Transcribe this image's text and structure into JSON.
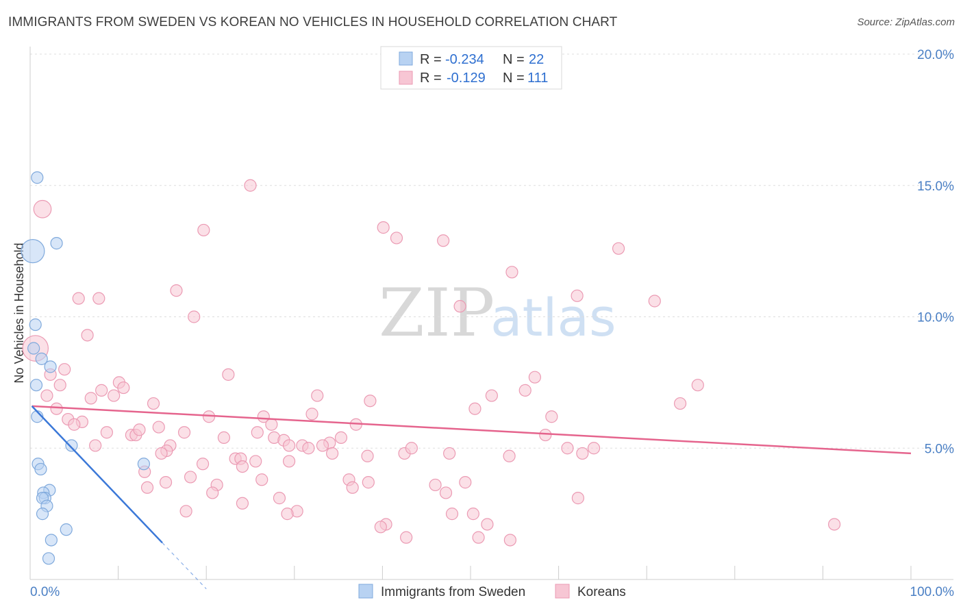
{
  "title": "IMMIGRANTS FROM SWEDEN VS KOREAN NO VEHICLES IN HOUSEHOLD CORRELATION CHART",
  "source": "Source: ZipAtlas.com",
  "watermark": {
    "zip": "ZIP",
    "atlas": "atlas"
  },
  "colors": {
    "blue_fill": "#b8d2f2",
    "blue_stroke": "#7fa9dc",
    "blue_line": "#3b78d8",
    "pink_fill": "#f7c6d4",
    "pink_stroke": "#eb9ab3",
    "pink_line": "#e5648d",
    "tick_text": "#4a7fc4",
    "grid": "#dddddd"
  },
  "legend": {
    "r_label": "R =",
    "n_label": "N =",
    "rows": [
      {
        "r": "-0.234",
        "n": "22"
      },
      {
        "r": "-0.129",
        "n": "111"
      }
    ]
  },
  "chart_data": {
    "type": "scatter",
    "xlabel": "",
    "ylabel": "No Vehicles in Household",
    "xlim": [
      0,
      100
    ],
    "ylim": [
      0,
      20
    ],
    "x_tick_labels": [
      "0.0%",
      "100.0%"
    ],
    "y_tick_labels": [
      "5.0%",
      "10.0%",
      "15.0%",
      "20.0%"
    ],
    "y_ticks": [
      5,
      10,
      15,
      20
    ],
    "grid": true,
    "series": [
      {
        "name": "Immigrants from Sweden",
        "color": "blue",
        "trend": {
          "x0": 0.2,
          "y0": 6.6,
          "x1": 15.0,
          "y1": 1.4,
          "dash_to_x": 20.0
        },
        "points": [
          {
            "x": 0.8,
            "y": 15.3,
            "s": 1
          },
          {
            "x": 0.3,
            "y": 12.5,
            "s": 2
          },
          {
            "x": 3.0,
            "y": 12.8,
            "s": 1
          },
          {
            "x": 0.6,
            "y": 9.7,
            "s": 1
          },
          {
            "x": 0.4,
            "y": 8.8,
            "s": 1
          },
          {
            "x": 1.3,
            "y": 8.4,
            "s": 1
          },
          {
            "x": 2.3,
            "y": 8.1,
            "s": 1
          },
          {
            "x": 0.7,
            "y": 7.4,
            "s": 1
          },
          {
            "x": 0.8,
            "y": 6.2,
            "s": 1
          },
          {
            "x": 4.7,
            "y": 5.1,
            "s": 1
          },
          {
            "x": 0.9,
            "y": 4.4,
            "s": 1
          },
          {
            "x": 1.2,
            "y": 4.2,
            "s": 1
          },
          {
            "x": 12.9,
            "y": 4.4,
            "s": 1
          },
          {
            "x": 2.2,
            "y": 3.4,
            "s": 1
          },
          {
            "x": 1.5,
            "y": 3.3,
            "s": 1
          },
          {
            "x": 1.7,
            "y": 3.1,
            "s": 1
          },
          {
            "x": 1.4,
            "y": 3.1,
            "s": 1
          },
          {
            "x": 1.9,
            "y": 2.8,
            "s": 1
          },
          {
            "x": 1.4,
            "y": 2.5,
            "s": 1
          },
          {
            "x": 4.1,
            "y": 1.9,
            "s": 1
          },
          {
            "x": 2.4,
            "y": 1.5,
            "s": 1
          },
          {
            "x": 2.1,
            "y": 0.8,
            "s": 1
          }
        ]
      },
      {
        "name": "Koreans",
        "color": "pink",
        "trend": {
          "x0": 0.2,
          "y0": 6.6,
          "x1": 100.0,
          "y1": 4.8
        },
        "points": [
          {
            "x": 1.4,
            "y": 14.1,
            "s": 1.5
          },
          {
            "x": 0.6,
            "y": 8.8,
            "s": 2.2
          },
          {
            "x": 25.0,
            "y": 15.0,
            "s": 1
          },
          {
            "x": 19.7,
            "y": 13.3,
            "s": 1
          },
          {
            "x": 40.1,
            "y": 13.4,
            "s": 1
          },
          {
            "x": 41.6,
            "y": 13.0,
            "s": 1
          },
          {
            "x": 46.9,
            "y": 12.9,
            "s": 1
          },
          {
            "x": 66.8,
            "y": 12.6,
            "s": 1
          },
          {
            "x": 54.7,
            "y": 11.7,
            "s": 1
          },
          {
            "x": 16.6,
            "y": 11.0,
            "s": 1
          },
          {
            "x": 5.5,
            "y": 10.7,
            "s": 1
          },
          {
            "x": 7.8,
            "y": 10.7,
            "s": 1
          },
          {
            "x": 62.1,
            "y": 10.8,
            "s": 1
          },
          {
            "x": 70.9,
            "y": 10.6,
            "s": 1
          },
          {
            "x": 48.8,
            "y": 10.4,
            "s": 1
          },
          {
            "x": 18.6,
            "y": 10.0,
            "s": 1
          },
          {
            "x": 6.5,
            "y": 9.3,
            "s": 1
          },
          {
            "x": 3.9,
            "y": 8.0,
            "s": 1
          },
          {
            "x": 2.3,
            "y": 7.8,
            "s": 1
          },
          {
            "x": 22.5,
            "y": 7.8,
            "s": 1
          },
          {
            "x": 57.3,
            "y": 7.7,
            "s": 1
          },
          {
            "x": 3.4,
            "y": 7.4,
            "s": 1
          },
          {
            "x": 10.1,
            "y": 7.5,
            "s": 1
          },
          {
            "x": 10.6,
            "y": 7.3,
            "s": 1
          },
          {
            "x": 8.1,
            "y": 7.2,
            "s": 1
          },
          {
            "x": 56.2,
            "y": 7.2,
            "s": 1
          },
          {
            "x": 75.8,
            "y": 7.4,
            "s": 1
          },
          {
            "x": 1.9,
            "y": 7.0,
            "s": 1
          },
          {
            "x": 9.5,
            "y": 7.0,
            "s": 1
          },
          {
            "x": 6.9,
            "y": 6.9,
            "s": 1
          },
          {
            "x": 32.6,
            "y": 7.0,
            "s": 1
          },
          {
            "x": 38.6,
            "y": 6.8,
            "s": 1
          },
          {
            "x": 52.4,
            "y": 7.0,
            "s": 1
          },
          {
            "x": 14.0,
            "y": 6.7,
            "s": 1
          },
          {
            "x": 73.8,
            "y": 6.7,
            "s": 1
          },
          {
            "x": 3.0,
            "y": 6.5,
            "s": 1
          },
          {
            "x": 50.5,
            "y": 6.5,
            "s": 1
          },
          {
            "x": 32.0,
            "y": 6.3,
            "s": 1
          },
          {
            "x": 4.3,
            "y": 6.1,
            "s": 1
          },
          {
            "x": 5.9,
            "y": 6.0,
            "s": 1
          },
          {
            "x": 20.3,
            "y": 6.2,
            "s": 1
          },
          {
            "x": 26.5,
            "y": 6.2,
            "s": 1
          },
          {
            "x": 27.4,
            "y": 5.9,
            "s": 1
          },
          {
            "x": 37.0,
            "y": 5.9,
            "s": 1
          },
          {
            "x": 59.2,
            "y": 6.2,
            "s": 1
          },
          {
            "x": 5.0,
            "y": 5.9,
            "s": 1
          },
          {
            "x": 11.5,
            "y": 5.5,
            "s": 1
          },
          {
            "x": 12.0,
            "y": 5.5,
            "s": 1
          },
          {
            "x": 12.4,
            "y": 5.7,
            "s": 1
          },
          {
            "x": 14.6,
            "y": 5.8,
            "s": 1
          },
          {
            "x": 8.7,
            "y": 5.6,
            "s": 1
          },
          {
            "x": 17.5,
            "y": 5.6,
            "s": 1
          },
          {
            "x": 22.0,
            "y": 5.4,
            "s": 1
          },
          {
            "x": 25.8,
            "y": 5.6,
            "s": 1
          },
          {
            "x": 27.7,
            "y": 5.4,
            "s": 1
          },
          {
            "x": 28.8,
            "y": 5.3,
            "s": 1
          },
          {
            "x": 30.9,
            "y": 5.1,
            "s": 1
          },
          {
            "x": 31.6,
            "y": 5.0,
            "s": 1
          },
          {
            "x": 34.0,
            "y": 5.2,
            "s": 1
          },
          {
            "x": 35.3,
            "y": 5.4,
            "s": 1
          },
          {
            "x": 58.5,
            "y": 5.5,
            "s": 1
          },
          {
            "x": 7.4,
            "y": 5.1,
            "s": 1
          },
          {
            "x": 15.9,
            "y": 5.1,
            "s": 1
          },
          {
            "x": 15.5,
            "y": 4.9,
            "s": 1
          },
          {
            "x": 14.9,
            "y": 4.8,
            "s": 1
          },
          {
            "x": 29.4,
            "y": 5.1,
            "s": 1
          },
          {
            "x": 33.2,
            "y": 5.1,
            "s": 1
          },
          {
            "x": 34.3,
            "y": 4.8,
            "s": 1
          },
          {
            "x": 42.5,
            "y": 4.8,
            "s": 1
          },
          {
            "x": 43.3,
            "y": 5.0,
            "s": 1
          },
          {
            "x": 47.6,
            "y": 4.8,
            "s": 1
          },
          {
            "x": 54.4,
            "y": 4.7,
            "s": 1
          },
          {
            "x": 61.0,
            "y": 5.0,
            "s": 1
          },
          {
            "x": 62.7,
            "y": 4.8,
            "s": 1
          },
          {
            "x": 64.0,
            "y": 5.0,
            "s": 1
          },
          {
            "x": 38.3,
            "y": 4.7,
            "s": 1
          },
          {
            "x": 23.3,
            "y": 4.6,
            "s": 1
          },
          {
            "x": 23.9,
            "y": 4.6,
            "s": 1
          },
          {
            "x": 19.6,
            "y": 4.4,
            "s": 1
          },
          {
            "x": 25.6,
            "y": 4.5,
            "s": 1
          },
          {
            "x": 29.4,
            "y": 4.5,
            "s": 1
          },
          {
            "x": 24.1,
            "y": 4.3,
            "s": 1
          },
          {
            "x": 13.0,
            "y": 4.1,
            "s": 1
          },
          {
            "x": 18.2,
            "y": 3.9,
            "s": 1
          },
          {
            "x": 15.4,
            "y": 3.7,
            "s": 1
          },
          {
            "x": 26.3,
            "y": 3.8,
            "s": 1
          },
          {
            "x": 36.2,
            "y": 3.8,
            "s": 1
          },
          {
            "x": 38.4,
            "y": 3.7,
            "s": 1
          },
          {
            "x": 46.0,
            "y": 3.6,
            "s": 1
          },
          {
            "x": 49.4,
            "y": 3.7,
            "s": 1
          },
          {
            "x": 13.3,
            "y": 3.5,
            "s": 1
          },
          {
            "x": 21.2,
            "y": 3.6,
            "s": 1
          },
          {
            "x": 20.7,
            "y": 3.3,
            "s": 1
          },
          {
            "x": 36.6,
            "y": 3.5,
            "s": 1
          },
          {
            "x": 47.2,
            "y": 3.3,
            "s": 1
          },
          {
            "x": 28.3,
            "y": 3.1,
            "s": 1
          },
          {
            "x": 62.2,
            "y": 3.1,
            "s": 1
          },
          {
            "x": 24.1,
            "y": 2.9,
            "s": 1
          },
          {
            "x": 17.7,
            "y": 2.6,
            "s": 1
          },
          {
            "x": 30.3,
            "y": 2.6,
            "s": 1
          },
          {
            "x": 29.2,
            "y": 2.5,
            "s": 1
          },
          {
            "x": 47.9,
            "y": 2.5,
            "s": 1
          },
          {
            "x": 50.3,
            "y": 2.5,
            "s": 1
          },
          {
            "x": 40.4,
            "y": 2.1,
            "s": 1
          },
          {
            "x": 51.9,
            "y": 2.1,
            "s": 1
          },
          {
            "x": 39.8,
            "y": 2.0,
            "s": 1
          },
          {
            "x": 91.3,
            "y": 2.1,
            "s": 1
          },
          {
            "x": 42.7,
            "y": 1.6,
            "s": 1
          },
          {
            "x": 50.9,
            "y": 1.6,
            "s": 1
          },
          {
            "x": 54.5,
            "y": 1.5,
            "s": 1
          }
        ]
      }
    ]
  }
}
